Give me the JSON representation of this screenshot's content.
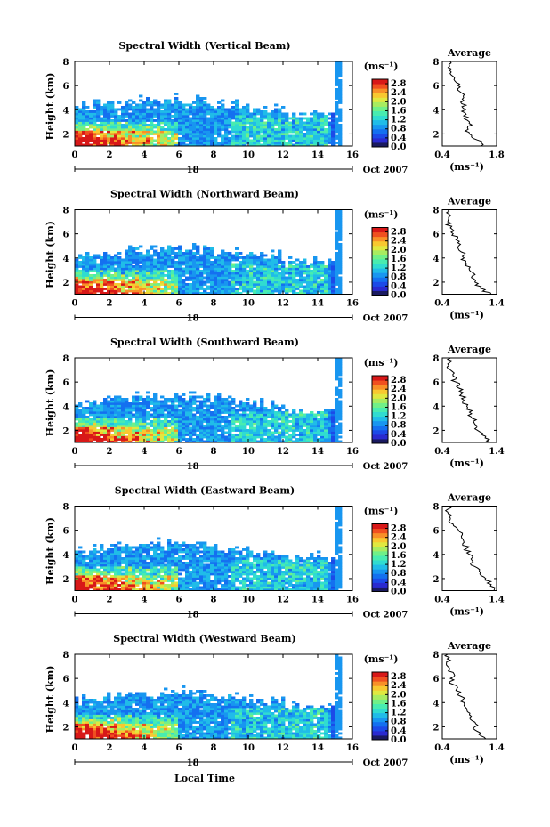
{
  "chart_data": {
    "type": "heatmap",
    "date_label": "Oct 2007",
    "day_label": "18",
    "xlabel": "Local Time",
    "ylabel": "Height (km)",
    "xlim": [
      0,
      16
    ],
    "ylim": [
      1,
      8
    ],
    "x_ticks": [
      "0",
      "2",
      "4",
      "6",
      "8",
      "10",
      "12",
      "14",
      "16"
    ],
    "y_ticks": [
      "2",
      "4",
      "6",
      "8"
    ],
    "colorbar": {
      "unit": "(ms⁻¹)",
      "ticks": [
        "0.0",
        "0.4",
        "0.8",
        "1.2",
        "1.6",
        "2.0",
        "2.4",
        "2.8"
      ],
      "range": [
        0,
        3.0
      ],
      "colors": [
        "#1a1a60",
        "#2a2ad0",
        "#1c4ae8",
        "#1470f0",
        "#1896f0",
        "#20bce8",
        "#30dcd0",
        "#48ecb0",
        "#70f088",
        "#a8ec60",
        "#e0e840",
        "#f8c830",
        "#f89028",
        "#f05020",
        "#d81818"
      ]
    },
    "avg_title": "Average",
    "avg_xlabel": "(ms⁻¹)",
    "avg_ylim": [
      1,
      8
    ],
    "avg_y_ticks": [
      "2",
      "4",
      "6",
      "8"
    ],
    "panels": [
      {
        "title": "Spectral Width (Vertical Beam)",
        "cbar_ticks": [
          "0.0",
          "0.4",
          "0.8",
          "1.2",
          "1.6",
          "2.0",
          "2.4",
          "2.8"
        ],
        "avg_xlim": [
          0.4,
          1.8
        ],
        "avg_x_ticks": [
          "0.4",
          "1.8"
        ],
        "avg_profile": [
          [
            1.4,
            1.0
          ],
          [
            1.3,
            1.5
          ],
          [
            1.1,
            2.0
          ],
          [
            1.05,
            2.5
          ],
          [
            1.1,
            3.0
          ],
          [
            0.95,
            3.5
          ],
          [
            1.0,
            4.0
          ],
          [
            0.9,
            4.5
          ],
          [
            0.95,
            5.0
          ],
          [
            0.85,
            5.5
          ],
          [
            0.8,
            6.0
          ],
          [
            0.7,
            6.5
          ],
          [
            0.6,
            7.0
          ],
          [
            0.55,
            7.5
          ],
          [
            0.6,
            8.0
          ]
        ]
      },
      {
        "title": "Spectral Width (Northward Beam)",
        "cbar_ticks": [
          "0.0",
          "0.4",
          "0.8",
          "1.2",
          "1.6",
          "2.0",
          "2.4",
          "2.8"
        ],
        "avg_xlim": [
          0.4,
          1.4
        ],
        "avg_x_ticks": [
          "0.4",
          "1.4"
        ],
        "avg_profile": [
          [
            1.3,
            1.0
          ],
          [
            1.1,
            1.5
          ],
          [
            1.0,
            2.0
          ],
          [
            0.95,
            2.5
          ],
          [
            0.9,
            3.0
          ],
          [
            0.85,
            3.5
          ],
          [
            0.8,
            4.0
          ],
          [
            0.75,
            4.5
          ],
          [
            0.7,
            5.0
          ],
          [
            0.65,
            5.5
          ],
          [
            0.6,
            6.0
          ],
          [
            0.55,
            6.5
          ],
          [
            0.5,
            7.0
          ],
          [
            0.55,
            7.5
          ],
          [
            0.5,
            8.0
          ]
        ]
      },
      {
        "title": "Spectral Width (Southward Beam)",
        "cbar_ticks": [
          "0.0",
          "0.4",
          "0.8",
          "1.2",
          "1.6",
          "2.0",
          "2.4",
          "2.8"
        ],
        "avg_xlim": [
          0.4,
          1.4
        ],
        "avg_x_ticks": [
          "0.4",
          "1.4"
        ],
        "avg_profile": [
          [
            1.3,
            1.0
          ],
          [
            1.2,
            1.5
          ],
          [
            1.05,
            2.0
          ],
          [
            1.0,
            2.5
          ],
          [
            0.95,
            3.0
          ],
          [
            0.9,
            3.5
          ],
          [
            0.85,
            4.0
          ],
          [
            0.8,
            4.5
          ],
          [
            0.75,
            5.0
          ],
          [
            0.7,
            5.5
          ],
          [
            0.65,
            6.0
          ],
          [
            0.6,
            6.5
          ],
          [
            0.55,
            7.0
          ],
          [
            0.5,
            7.5
          ],
          [
            0.55,
            8.0
          ]
        ]
      },
      {
        "title": "Spectral Width (Eastward Beam)",
        "cbar_ticks": [
          "0.0",
          "0.4",
          "0.8",
          "1.2",
          "1.6",
          "2.0",
          "2.4",
          "2.8"
        ],
        "avg_xlim": [
          0.4,
          1.4
        ],
        "avg_x_ticks": [
          "0.4",
          "1.4"
        ],
        "avg_profile": [
          [
            1.35,
            1.0
          ],
          [
            1.3,
            1.5
          ],
          [
            1.2,
            2.0
          ],
          [
            1.1,
            2.5
          ],
          [
            1.0,
            3.0
          ],
          [
            0.95,
            3.5
          ],
          [
            0.9,
            4.0
          ],
          [
            0.85,
            4.5
          ],
          [
            0.8,
            5.0
          ],
          [
            0.75,
            5.5
          ],
          [
            0.7,
            6.0
          ],
          [
            0.6,
            6.5
          ],
          [
            0.55,
            7.0
          ],
          [
            0.5,
            7.5
          ],
          [
            0.55,
            8.0
          ]
        ]
      },
      {
        "title": "Spectral Width (Westward Beam)",
        "cbar_ticks": [
          "0.0",
          "0.4",
          "0.8",
          "1.2",
          "1.6",
          "2.0",
          "2.4",
          "2.8"
        ],
        "avg_xlim": [
          0.4,
          1.4
        ],
        "avg_x_ticks": [
          "0.4",
          "1.4"
        ],
        "avg_profile": [
          [
            1.2,
            1.0
          ],
          [
            1.1,
            1.5
          ],
          [
            1.0,
            2.0
          ],
          [
            0.95,
            2.5
          ],
          [
            0.9,
            3.0
          ],
          [
            0.85,
            3.5
          ],
          [
            0.8,
            4.0
          ],
          [
            0.75,
            4.5
          ],
          [
            0.65,
            5.0
          ],
          [
            0.6,
            5.5
          ],
          [
            0.55,
            6.0
          ],
          [
            0.6,
            6.5
          ],
          [
            0.5,
            7.0
          ],
          [
            0.55,
            7.5
          ],
          [
            0.5,
            8.0
          ]
        ]
      }
    ]
  }
}
